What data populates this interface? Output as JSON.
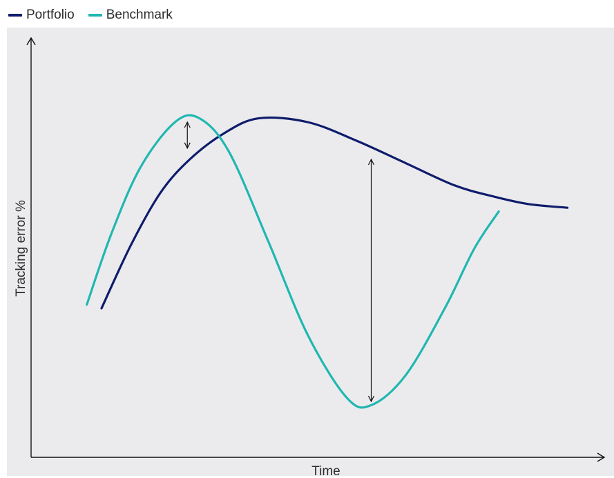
{
  "chart_data": {
    "type": "line",
    "title": "",
    "xlabel": "Time",
    "ylabel": "Tracking error %",
    "legend_position": "top-left",
    "grid": false,
    "xlim": [
      0,
      100
    ],
    "ylim": [
      0,
      100
    ],
    "series": [
      {
        "name": "Portfolio",
        "color": "#0f1c6b",
        "points": [
          [
            0,
            40
          ],
          [
            6,
            57
          ],
          [
            12,
            71
          ],
          [
            18,
            80
          ],
          [
            25,
            87
          ],
          [
            32,
            91
          ],
          [
            42,
            90
          ],
          [
            52,
            85
          ],
          [
            62,
            79
          ],
          [
            72,
            73
          ],
          [
            80,
            70
          ],
          [
            87,
            68
          ],
          [
            95,
            67
          ]
        ]
      },
      {
        "name": "Benchmark",
        "color": "#20b7b0",
        "points": [
          [
            -3,
            41
          ],
          [
            2,
            60
          ],
          [
            8,
            78
          ],
          [
            15,
            90
          ],
          [
            20,
            91
          ],
          [
            26,
            82
          ],
          [
            34,
            58
          ],
          [
            42,
            33
          ],
          [
            50,
            16
          ],
          [
            55,
            14
          ],
          [
            62,
            22
          ],
          [
            70,
            40
          ],
          [
            76,
            56
          ],
          [
            81,
            66
          ]
        ]
      }
    ],
    "annotations": [
      {
        "type": "double-arrow",
        "x": 17.5,
        "y_from": 83,
        "y_to": 90
      },
      {
        "type": "double-arrow",
        "x": 55,
        "y_from": 15,
        "y_to": 80
      }
    ]
  }
}
